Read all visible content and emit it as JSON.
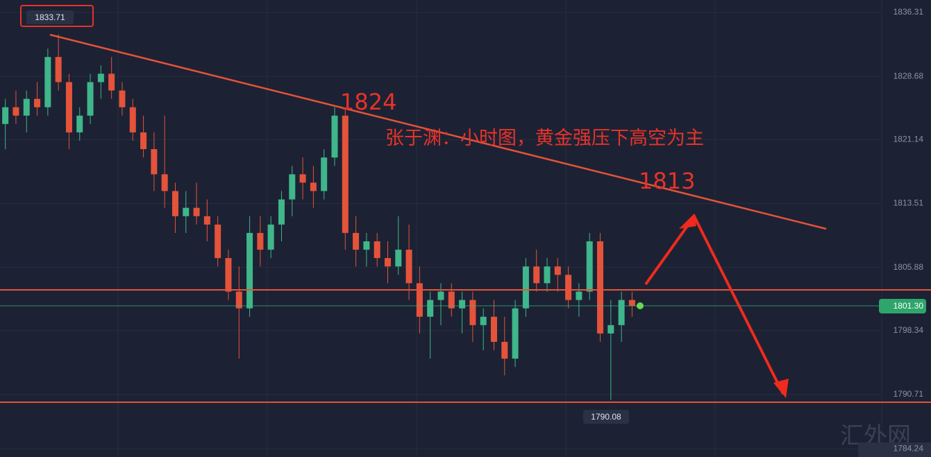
{
  "chart_data": {
    "type": "candlestick",
    "up_color": "#3fb68b",
    "down_color": "#e5533b",
    "ylim": [
      1783.26,
      1837.8
    ],
    "xlim": [
      0,
      83
    ],
    "yticks": [
      1836.31,
      1828.68,
      1821.14,
      1813.51,
      1805.88,
      1798.34,
      1790.71,
      1784.24
    ],
    "open": [
      1823,
      1825,
      1824,
      1826,
      1825,
      1831,
      1828,
      1822,
      1824,
      1828,
      1829,
      1827,
      1825,
      1822,
      1820,
      1817,
      1815,
      1812,
      1813,
      1812,
      1811,
      1807,
      1803,
      1801,
      1810,
      1808,
      1811,
      1814,
      1817,
      1816,
      1815,
      1819,
      1824,
      1810,
      1808,
      1809,
      1807,
      1806,
      1808,
      1804,
      1800,
      1802,
      1803,
      1801,
      1802,
      1799,
      1800,
      1797,
      1795,
      1801,
      1806,
      1804,
      1806,
      1805,
      1802,
      1803,
      1809,
      1798,
      1799,
      1802
    ],
    "high": [
      1826,
      1827,
      1827,
      1828,
      1832,
      1833.71,
      1829,
      1825,
      1829,
      1830,
      1831,
      1828,
      1826,
      1824,
      1822,
      1824,
      1816,
      1815,
      1816,
      1814,
      1812,
      1808,
      1806,
      1812,
      1812,
      1812,
      1815,
      1818,
      1819,
      1818,
      1820,
      1825,
      1825,
      1812,
      1810,
      1810,
      1809,
      1812,
      1811,
      1806,
      1803,
      1804,
      1804,
      1803,
      1803,
      1801,
      1802,
      1800,
      1802,
      1807,
      1808,
      1807,
      1807,
      1806,
      1804,
      1810,
      1810,
      1802,
      1803,
      1803
    ],
    "low": [
      1820,
      1823,
      1822,
      1824,
      1824,
      1827,
      1820,
      1821,
      1823,
      1826,
      1826,
      1824,
      1821,
      1819,
      1815,
      1813,
      1810,
      1810,
      1811,
      1809,
      1806,
      1802,
      1795,
      1800,
      1806,
      1807,
      1809,
      1812,
      1814,
      1813,
      1814,
      1818,
      1808,
      1806,
      1806,
      1806,
      1804,
      1805,
      1802,
      1798,
      1795,
      1799,
      1800,
      1798,
      1797,
      1796,
      1796,
      1793,
      1794,
      1800,
      1803,
      1803,
      1803,
      1801,
      1800,
      1802,
      1797,
      1790.08,
      1797,
      1800
    ],
    "close": [
      1825,
      1824,
      1826,
      1825,
      1831,
      1828,
      1822,
      1824,
      1828,
      1829,
      1827,
      1825,
      1822,
      1820,
      1817,
      1815,
      1812,
      1813,
      1812,
      1811,
      1807,
      1803,
      1801,
      1810,
      1808,
      1811,
      1814,
      1817,
      1816,
      1815,
      1819,
      1824,
      1810,
      1808,
      1809,
      1807,
      1806,
      1808,
      1804,
      1800,
      1802,
      1803,
      1801,
      1802,
      1799,
      1800,
      1797,
      1795,
      1801,
      1806,
      1804,
      1806,
      1805,
      1802,
      1803,
      1809,
      1798,
      1799,
      1802,
      1801.3
    ],
    "high_label": "1833.71",
    "low_label": "1790.08",
    "last_price_label": "1801.30",
    "annotations": [
      "1824",
      "1813",
      "张于渊：小时图，黄金强压下高空为主"
    ],
    "watermark": "汇外网"
  }
}
